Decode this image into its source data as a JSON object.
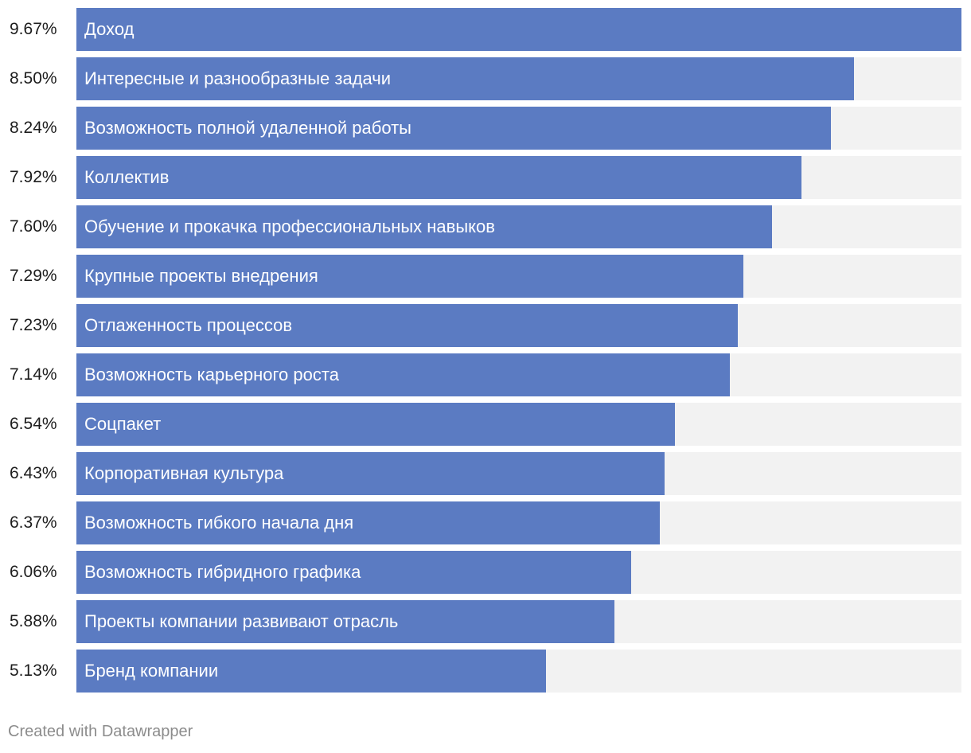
{
  "chart_data": {
    "type": "bar",
    "orientation": "horizontal",
    "xlim": [
      0,
      9.67
    ],
    "categories": [
      "Доход",
      "Интересные и разнообразные задачи",
      "Возможность полной удаленной работы",
      "Коллектив",
      "Обучение и прокачка профессиональных навыков",
      "Крупные проекты внедрения",
      "Отлаженность процессов",
      "Возможность карьерного роста",
      "Соцпакет",
      "Корпоративная культура",
      "Возможность гибкого начала дня",
      "Возможность гибридного графика",
      "Проекты компании развивают отрасль",
      "Бренд компании"
    ],
    "values": [
      9.67,
      8.5,
      8.24,
      7.92,
      7.6,
      7.29,
      7.23,
      7.14,
      6.54,
      6.43,
      6.37,
      6.06,
      5.88,
      5.13
    ],
    "value_labels": [
      "9.67%",
      "8.50%",
      "8.24%",
      "7.92%",
      "7.60%",
      "7.29%",
      "7.23%",
      "7.14%",
      "6.54%",
      "6.43%",
      "6.37%",
      "6.06%",
      "5.88%",
      "5.13%"
    ],
    "colors": {
      "bar": "#5b7bc2",
      "track": "#f2f2f2",
      "label": "#ffffff",
      "value_text": "#1d1d1d"
    }
  },
  "footer": {
    "credit": "Created with Datawrapper"
  }
}
